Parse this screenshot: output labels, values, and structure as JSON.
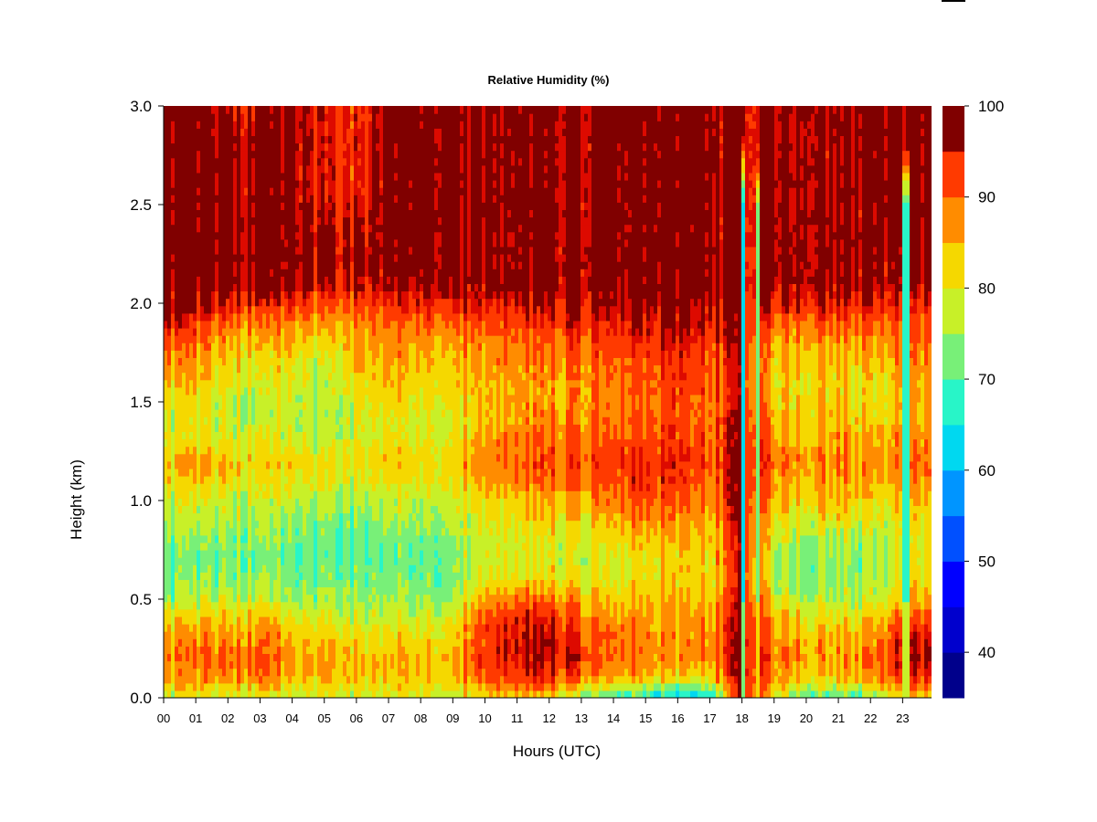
{
  "chart_data": {
    "type": "heatmap",
    "title": "Relative Humidity (%)",
    "xlabel": "Hours (UTC)",
    "ylabel": "Height (km)",
    "x_ticks": [
      "00",
      "01",
      "02",
      "03",
      "04",
      "05",
      "06",
      "07",
      "08",
      "09",
      "10",
      "11",
      "12",
      "13",
      "14",
      "15",
      "16",
      "17",
      "18",
      "19",
      "20",
      "21",
      "22",
      "23"
    ],
    "y_ticks": [
      "0.0",
      "0.5",
      "1.0",
      "1.5",
      "2.0",
      "2.5",
      "3.0"
    ],
    "xlim": [
      0,
      23.9
    ],
    "ylim": [
      0,
      3.0
    ],
    "colorbar": {
      "range": [
        35,
        100
      ],
      "ticks": [
        "40",
        "50",
        "60",
        "70",
        "80",
        "90",
        "100"
      ],
      "levels": [
        35,
        40,
        45,
        50,
        55,
        60,
        65,
        70,
        75,
        80,
        85,
        90,
        95,
        100
      ],
      "colors": [
        "#00008b",
        "#0000cd",
        "#0000ff",
        "#0050ff",
        "#0095ff",
        "#00d8f0",
        "#28f5c8",
        "#78f078",
        "#c8f028",
        "#f5d800",
        "#ff8c00",
        "#ff3a00",
        "#dd0a00",
        "#800000"
      ]
    },
    "height_km": [
      0.0,
      0.05,
      0.1,
      0.2,
      0.3,
      0.4,
      0.5,
      0.6,
      0.7,
      0.8,
      0.9,
      1.0,
      1.1,
      1.2,
      1.3,
      1.4,
      1.5,
      1.6,
      1.7,
      1.8,
      1.9,
      2.0,
      2.1,
      2.2,
      2.4,
      2.6,
      2.8,
      3.0
    ],
    "hours": [
      0,
      1,
      2,
      3,
      4,
      5,
      6,
      7,
      8,
      9,
      10,
      11,
      12,
      13,
      14,
      15,
      16,
      17,
      18,
      19,
      20,
      21,
      22,
      23
    ],
    "profiles": [
      [
        76,
        80,
        84,
        86,
        84,
        80,
        73,
        70,
        70,
        72,
        74,
        76,
        80,
        82,
        78,
        76,
        80,
        84,
        86,
        90,
        95,
        99,
        100,
        100,
        100,
        100,
        100,
        100
      ],
      [
        78,
        82,
        86,
        88,
        86,
        82,
        76,
        72,
        71,
        72,
        75,
        78,
        82,
        84,
        80,
        78,
        80,
        82,
        85,
        88,
        92,
        97,
        100,
        100,
        100,
        100,
        100,
        100
      ],
      [
        78,
        82,
        88,
        90,
        88,
        84,
        78,
        74,
        73,
        74,
        76,
        78,
        82,
        84,
        80,
        78,
        78,
        80,
        82,
        86,
        90,
        96,
        100,
        100,
        100,
        100,
        100,
        98
      ],
      [
        79,
        83,
        88,
        90,
        88,
        84,
        78,
        74,
        72,
        73,
        75,
        77,
        80,
        82,
        79,
        77,
        76,
        78,
        80,
        84,
        88,
        95,
        100,
        100,
        100,
        100,
        100,
        98
      ],
      [
        78,
        82,
        86,
        88,
        86,
        82,
        76,
        73,
        72,
        73,
        75,
        78,
        82,
        84,
        80,
        78,
        79,
        80,
        83,
        86,
        90,
        95,
        100,
        100,
        100,
        100,
        100,
        100
      ],
      [
        76,
        80,
        83,
        84,
        82,
        78,
        74,
        72,
        70,
        70,
        72,
        74,
        78,
        80,
        76,
        74,
        74,
        74,
        76,
        79,
        84,
        90,
        95,
        98,
        96,
        94,
        94,
        94
      ],
      [
        77,
        80,
        83,
        84,
        82,
        78,
        74,
        72,
        71,
        70,
        72,
        74,
        78,
        80,
        78,
        78,
        80,
        82,
        84,
        86,
        88,
        92,
        96,
        98,
        96,
        94,
        94,
        94
      ],
      [
        78,
        81,
        84,
        85,
        83,
        79,
        75,
        73,
        72,
        73,
        76,
        78,
        82,
        84,
        82,
        80,
        83,
        85,
        86,
        88,
        90,
        94,
        98,
        100,
        100,
        100,
        100,
        100
      ],
      [
        78,
        81,
        84,
        85,
        82,
        78,
        74,
        72,
        71,
        72,
        74,
        76,
        80,
        82,
        80,
        78,
        80,
        82,
        84,
        86,
        90,
        95,
        99,
        100,
        100,
        100,
        100,
        100
      ],
      [
        78,
        81,
        84,
        85,
        83,
        80,
        76,
        74,
        74,
        75,
        77,
        79,
        82,
        84,
        82,
        80,
        82,
        84,
        85,
        87,
        91,
        96,
        100,
        100,
        100,
        100,
        100,
        100
      ],
      [
        84,
        88,
        92,
        96,
        95,
        94,
        88,
        82,
        80,
        80,
        82,
        84,
        88,
        90,
        88,
        86,
        86,
        86,
        88,
        90,
        93,
        97,
        100,
        100,
        100,
        100,
        100,
        100
      ],
      [
        84,
        89,
        93,
        97,
        97,
        95,
        89,
        82,
        79,
        79,
        81,
        84,
        88,
        91,
        89,
        86,
        86,
        86,
        88,
        90,
        93,
        97,
        100,
        100,
        100,
        100,
        100,
        100
      ],
      [
        82,
        88,
        94,
        98,
        98,
        95,
        89,
        82,
        79,
        80,
        83,
        86,
        90,
        92,
        90,
        88,
        86,
        86,
        88,
        90,
        94,
        98,
        100,
        100,
        100,
        100,
        100,
        100
      ],
      [
        74,
        82,
        90,
        94,
        92,
        90,
        86,
        80,
        78,
        79,
        82,
        86,
        90,
        92,
        90,
        88,
        88,
        88,
        90,
        92,
        95,
        98,
        100,
        100,
        100,
        100,
        100,
        100
      ],
      [
        70,
        78,
        86,
        90,
        90,
        88,
        84,
        80,
        80,
        82,
        86,
        89,
        92,
        94,
        92,
        90,
        89,
        90,
        91,
        93,
        96,
        99,
        100,
        100,
        100,
        100,
        100,
        100
      ],
      [
        66,
        74,
        84,
        88,
        88,
        86,
        84,
        82,
        82,
        84,
        88,
        91,
        94,
        94,
        92,
        91,
        90,
        91,
        92,
        94,
        97,
        99,
        100,
        100,
        100,
        100,
        100,
        100
      ],
      [
        60,
        70,
        80,
        86,
        86,
        86,
        84,
        82,
        82,
        84,
        86,
        90,
        92,
        94,
        92,
        92,
        92,
        92,
        93,
        95,
        97,
        99,
        100,
        100,
        100,
        100,
        100,
        100
      ],
      [
        64,
        72,
        82,
        88,
        88,
        86,
        84,
        82,
        82,
        84,
        86,
        88,
        90,
        92,
        91,
        90,
        90,
        91,
        92,
        94,
        96,
        98,
        100,
        100,
        100,
        100,
        100,
        100
      ],
      [
        98,
        97,
        99,
        99,
        99,
        98,
        97,
        96,
        96,
        96,
        97,
        98,
        98,
        98,
        98,
        97,
        96,
        95,
        95,
        96,
        97,
        98,
        99,
        99,
        99,
        99,
        99,
        99
      ],
      [
        80,
        84,
        88,
        90,
        88,
        85,
        80,
        77,
        76,
        78,
        82,
        86,
        88,
        90,
        88,
        86,
        84,
        83,
        84,
        86,
        90,
        96,
        99,
        100,
        100,
        100,
        100,
        100
      ],
      [
        72,
        78,
        84,
        88,
        86,
        82,
        77,
        74,
        74,
        76,
        80,
        83,
        86,
        88,
        86,
        84,
        83,
        83,
        85,
        87,
        91,
        97,
        100,
        100,
        100,
        100,
        100,
        100
      ],
      [
        70,
        78,
        84,
        88,
        86,
        82,
        78,
        75,
        75,
        77,
        82,
        86,
        88,
        90,
        88,
        86,
        84,
        84,
        86,
        88,
        92,
        97,
        100,
        100,
        100,
        100,
        100,
        100
      ],
      [
        72,
        79,
        85,
        88,
        86,
        82,
        76,
        74,
        73,
        74,
        78,
        80,
        84,
        86,
        84,
        82,
        80,
        80,
        82,
        86,
        90,
        95,
        98,
        100,
        100,
        100,
        100,
        100
      ],
      [
        82,
        88,
        94,
        98,
        96,
        92,
        86,
        82,
        80,
        80,
        82,
        84,
        88,
        90,
        88,
        86,
        86,
        86,
        88,
        90,
        92,
        95,
        98,
        99,
        100,
        100,
        100,
        100
      ]
    ],
    "dry_streaks": [
      {
        "center_hour": 18.05,
        "min_rh": 62
      },
      {
        "center_hour": 18.5,
        "min_rh": 72
      },
      {
        "center_hour": 23.1,
        "min_rh": 64
      }
    ]
  }
}
